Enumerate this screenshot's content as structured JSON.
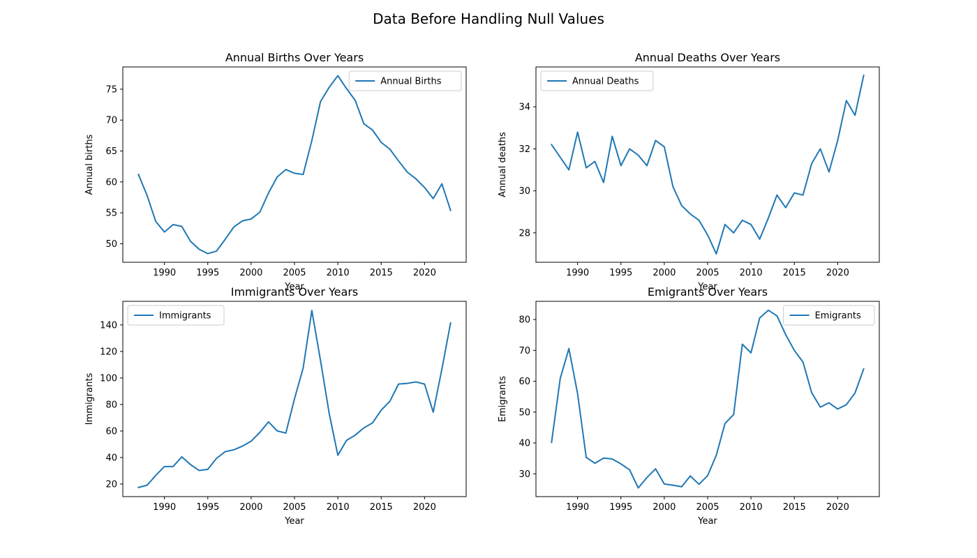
{
  "figure": {
    "suptitle": "Data Before Handling Null Values",
    "line_color": "#1f77b4"
  },
  "chart_data": [
    {
      "type": "line",
      "title": "Annual Births Over Years",
      "xlabel": "Year",
      "ylabel": "Annual births",
      "legend": "top-right",
      "grid": false,
      "xlim": [
        1985.2,
        1024.8
      ],
      "ylim": [
        47.0,
        78.6
      ],
      "xticks": [
        1990,
        1995,
        2000,
        2005,
        2010,
        2015,
        2020
      ],
      "yticks": [
        50,
        55,
        60,
        65,
        70,
        75
      ],
      "series": [
        {
          "name": "Annual Births",
          "x": [
            1987,
            1988,
            1989,
            1990,
            1991,
            1992,
            1993,
            1994,
            1995,
            1996,
            1997,
            1998,
            1999,
            2000,
            2001,
            2002,
            2003,
            2004,
            2005,
            2006,
            2007,
            2008,
            2009,
            2010,
            2011,
            2012,
            2013,
            2014,
            2015,
            2016,
            2017,
            2018,
            2019,
            2020,
            2021,
            2022,
            2023
          ],
          "y": [
            61.2,
            57.8,
            53.6,
            51.9,
            53.1,
            52.8,
            50.4,
            49.1,
            48.4,
            48.8,
            50.7,
            52.7,
            53.7,
            54.0,
            55.1,
            58.2,
            60.8,
            62.0,
            61.4,
            61.2,
            66.7,
            73.0,
            75.3,
            77.2,
            75.1,
            73.2,
            69.4,
            68.4,
            66.4,
            65.3,
            63.4,
            61.6,
            60.5,
            59.1,
            57.3,
            59.7,
            55.4
          ]
        }
      ]
    },
    {
      "type": "line",
      "title": "Annual Deaths Over Years",
      "xlabel": "Year",
      "ylabel": "Annual deaths",
      "legend": "top-left",
      "grid": false,
      "xlim": [
        1985.2,
        2024.8
      ],
      "ylim": [
        26.6,
        35.9
      ],
      "xticks": [
        1990,
        1995,
        2000,
        2005,
        2010,
        2015,
        2020
      ],
      "yticks": [
        28,
        30,
        32,
        34
      ],
      "series": [
        {
          "name": "Annual Deaths",
          "x": [
            1987,
            1988,
            1989,
            1990,
            1991,
            1992,
            1993,
            1994,
            1995,
            1996,
            1997,
            1998,
            1999,
            2000,
            2001,
            2002,
            2003,
            2004,
            2005,
            2006,
            2007,
            2008,
            2009,
            2010,
            2011,
            2012,
            2013,
            2014,
            2015,
            2016,
            2017,
            2018,
            2019,
            2020,
            2021,
            2022,
            2023
          ],
          "y": [
            32.2,
            31.6,
            31.0,
            32.8,
            31.1,
            31.4,
            30.4,
            32.6,
            31.2,
            32.0,
            31.7,
            31.2,
            32.4,
            32.1,
            30.2,
            29.3,
            28.9,
            28.6,
            27.9,
            27.0,
            28.4,
            28.0,
            28.6,
            28.4,
            27.7,
            28.7,
            29.8,
            29.2,
            29.9,
            29.8,
            31.3,
            32.0,
            30.9,
            32.4,
            34.3,
            33.6,
            35.5
          ]
        }
      ]
    },
    {
      "type": "line",
      "title": "Immigrants Over Years",
      "xlabel": "Year",
      "ylabel": "Immigrants",
      "legend": "top-left",
      "grid": false,
      "xlim": [
        1985.2,
        2024.8
      ],
      "ylim": [
        10.5,
        157.8
      ],
      "xticks": [
        1990,
        1995,
        2000,
        2005,
        2010,
        2015,
        2020
      ],
      "yticks": [
        20,
        40,
        60,
        80,
        100,
        120,
        140
      ],
      "series": [
        {
          "name": "Immigrants",
          "x": [
            1987,
            1988,
            1989,
            1990,
            1991,
            1992,
            1993,
            1994,
            1995,
            1996,
            1997,
            1998,
            1999,
            2000,
            2001,
            2002,
            2003,
            2004,
            2005,
            2006,
            2007,
            2008,
            2009,
            2010,
            2011,
            2012,
            2013,
            2014,
            2015,
            2016,
            2017,
            2018,
            2019,
            2020,
            2021,
            2022,
            2023
          ],
          "y": [
            17.4,
            19.1,
            26.5,
            33.2,
            33.2,
            40.5,
            34.7,
            30.2,
            31.1,
            39.3,
            44.4,
            45.8,
            48.6,
            52.3,
            58.9,
            66.9,
            60.1,
            58.4,
            84.3,
            107.5,
            150.9,
            113.2,
            73.3,
            41.7,
            52.9,
            56.9,
            62.3,
            66.1,
            75.7,
            82.4,
            95.4,
            95.9,
            97.0,
            95.4,
            74.2,
            106.6,
            141.5
          ]
        }
      ]
    },
    {
      "type": "line",
      "title": "Emigrants Over Years",
      "xlabel": "Year",
      "ylabel": "Emigrants",
      "legend": "top-right",
      "grid": false,
      "xlim": [
        1985.2,
        2024.8
      ],
      "ylim": [
        22.6,
        85.9
      ],
      "xticks": [
        1990,
        1995,
        2000,
        2005,
        2010,
        2015,
        2020
      ],
      "yticks": [
        30,
        40,
        50,
        60,
        70,
        80
      ],
      "series": [
        {
          "name": "Emigrants",
          "x": [
            1987,
            1988,
            1989,
            1990,
            1991,
            1992,
            1993,
            1994,
            1995,
            1996,
            1997,
            1998,
            1999,
            2000,
            2001,
            2002,
            2003,
            2004,
            2005,
            2006,
            2007,
            2008,
            2009,
            2010,
            2011,
            2012,
            2013,
            2014,
            2015,
            2016,
            2017,
            2018,
            2019,
            2020,
            2021,
            2022,
            2023
          ],
          "y": [
            40.2,
            60.9,
            70.6,
            56.0,
            35.3,
            33.4,
            35.1,
            34.8,
            33.2,
            31.3,
            25.4,
            28.8,
            31.6,
            26.7,
            26.3,
            25.8,
            29.3,
            26.6,
            29.4,
            36.0,
            46.3,
            49.2,
            72.0,
            69.2,
            80.5,
            83.0,
            81.2,
            75.1,
            70.0,
            66.2,
            56.3,
            51.6,
            53.0,
            51.0,
            52.4,
            56.2,
            64.0
          ]
        }
      ]
    }
  ]
}
